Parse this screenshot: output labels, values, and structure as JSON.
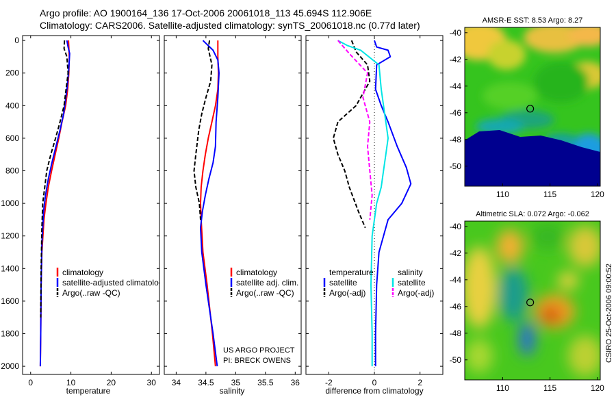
{
  "header": {
    "line1": "Argo profile: AO 1900164_136 17-Oct-2006 20061018_113 45.694S 112.906E",
    "line2": "Climatology: CARS2006. Satellite-adjusted climatology: synTS_20061018.nc (0.77d later)"
  },
  "credit": {
    "project": "US ARGO PROJECT",
    "pi": "PI: BRECK OWENS"
  },
  "stamp": "CSIRO 25-Oct-2006 09:00:52",
  "colors": {
    "climatology": "#ff0000",
    "satellite": "#0000ff",
    "argo": "#000000",
    "satellite_salinity": "#00e5e5",
    "argo_salinity": "#ff00ff"
  },
  "chart_data": [
    {
      "type": "line",
      "panel": "temperature",
      "xlabel": "temperature",
      "ylabel": "",
      "xlim": [
        -2,
        32
      ],
      "ylim": [
        2050,
        -30
      ],
      "x_ticks": [
        "0",
        "10",
        "20",
        "30"
      ],
      "y_ticks": [
        "0",
        "200",
        "400",
        "600",
        "800",
        "1000",
        "1200",
        "1400",
        "1600",
        "1800",
        "2000"
      ],
      "legend": {
        "placement": "lower-right",
        "labels": [
          "climatology",
          "satellite-adjusted climatology",
          "Argo(..raw -QC)"
        ]
      },
      "series": [
        {
          "name": "climatology",
          "color": "#ff0000",
          "dash": "solid",
          "x": [
            9.4,
            9.6,
            9.5,
            9.2,
            8.7,
            7.8,
            7.0,
            6.1,
            5.2,
            4.4,
            3.8,
            3.3,
            2.8,
            2.6,
            2.5,
            2.4
          ],
          "y": [
            0,
            100,
            200,
            300,
            400,
            500,
            600,
            700,
            800,
            900,
            1000,
            1100,
            1300,
            1500,
            1800,
            2000
          ]
        },
        {
          "name": "satellite-adjusted climatology",
          "color": "#0000ff",
          "dash": "solid",
          "x": [
            9.0,
            9.3,
            9.7,
            9.4,
            9.0,
            8.2,
            7.3,
            6.3,
            5.3,
            4.4,
            3.7,
            3.2,
            2.8,
            2.6,
            2.5,
            2.4
          ],
          "y": [
            0,
            40,
            80,
            200,
            300,
            450,
            550,
            650,
            750,
            850,
            950,
            1050,
            1250,
            1500,
            1800,
            2000
          ]
        },
        {
          "name": "Argo(..raw -QC)",
          "color": "#000000",
          "dash": "dashed",
          "x": [
            8.4,
            8.3,
            9.0,
            9.3,
            8.8,
            8.3,
            7.3,
            6.2,
            5.0,
            4.0,
            3.5,
            3.0,
            2.8,
            2.6,
            2.5
          ],
          "y": [
            0,
            50,
            100,
            200,
            300,
            400,
            500,
            600,
            700,
            800,
            900,
            1000,
            1150,
            1400,
            1700
          ]
        }
      ]
    },
    {
      "type": "line",
      "panel": "salinity",
      "xlabel": "salinity",
      "ylabel": "",
      "xlim": [
        33.8,
        36.1
      ],
      "ylim": [
        2050,
        -30
      ],
      "x_ticks": [
        "34",
        "34.5",
        "35",
        "35.5",
        "36"
      ],
      "y_ticks": [],
      "legend": {
        "placement": "lower-right",
        "labels": [
          "climatology",
          "satellite adj. clim.",
          "Argo(..raw -QC)"
        ]
      },
      "series": [
        {
          "name": "climatology",
          "color": "#ff0000",
          "dash": "solid",
          "x": [
            34.7,
            34.7,
            34.71,
            34.7,
            34.66,
            34.6,
            34.54,
            34.49,
            34.45,
            34.42,
            34.41,
            34.42,
            34.45,
            34.52,
            34.61,
            34.66
          ],
          "y": [
            0,
            100,
            200,
            300,
            400,
            500,
            600,
            700,
            800,
            900,
            1000,
            1100,
            1300,
            1500,
            1800,
            2000
          ]
        },
        {
          "name": "satellite adj. clim.",
          "color": "#0000ff",
          "dash": "solid",
          "x": [
            34.45,
            34.62,
            34.7,
            34.72,
            34.7,
            34.67,
            34.66,
            34.62,
            34.55,
            34.49,
            34.44,
            34.41,
            34.43,
            34.5,
            34.62,
            34.69
          ],
          "y": [
            0,
            60,
            120,
            200,
            350,
            500,
            650,
            750,
            850,
            950,
            1050,
            1150,
            1300,
            1500,
            1800,
            2000
          ]
        },
        {
          "name": "Argo(..raw -QC)",
          "color": "#000000",
          "dash": "dashed",
          "x": [
            34.56,
            34.54,
            34.6,
            34.58,
            34.5,
            34.43,
            34.38,
            34.33,
            34.3,
            34.33,
            34.39,
            34.41
          ],
          "y": [
            0,
            50,
            150,
            250,
            350,
            450,
            550,
            700,
            800,
            900,
            1000,
            1100
          ]
        }
      ]
    },
    {
      "type": "line",
      "panel": "difference",
      "xlabel": "difference from climatology",
      "ylabel": "",
      "xlim": [
        -3,
        3
      ],
      "ylim": [
        2050,
        -30
      ],
      "x_ticks": [
        "-2",
        "0",
        "2"
      ],
      "y_ticks": [],
      "legend": {
        "placement": "lower-left",
        "labels": [
          "temperature",
          "satellite",
          "Argo(-adj)",
          "salinity",
          "satellite",
          "Argo(-adj)"
        ]
      },
      "series": [
        {
          "name": "satellite",
          "group": "temperature",
          "color": "#0000ff",
          "dash": "solid",
          "x": [
            0.0,
            0.1,
            0.6,
            0.7,
            0.1,
            0.05,
            0.3,
            0.6,
            1.0,
            1.4,
            1.6,
            1.2,
            0.6,
            0.2,
            0.1,
            0.05,
            0.05
          ],
          "y": [
            0,
            40,
            60,
            100,
            150,
            300,
            400,
            500,
            650,
            780,
            880,
            1000,
            1100,
            1300,
            1500,
            1800,
            2000
          ]
        },
        {
          "name": "Argo(-adj)",
          "group": "temperature",
          "color": "#000000",
          "dash": "dashed",
          "x": [
            -1.0,
            -0.8,
            -0.3,
            -0.2,
            -0.8,
            -1.6,
            -1.8,
            -1.6,
            -1.3,
            -1.1,
            -0.7,
            -0.4
          ],
          "y": [
            0,
            70,
            150,
            250,
            400,
            500,
            600,
            700,
            800,
            900,
            1050,
            1150
          ]
        },
        {
          "name": "satellite",
          "group": "salinity",
          "color": "#00e5e5",
          "dash": "solid",
          "x": [
            -1.6,
            -1.2,
            -0.6,
            0.2,
            0.3,
            0.5,
            0.6,
            0.5,
            0.4,
            0.3,
            0.1,
            -0.1,
            -0.15,
            -0.1,
            -0.1
          ],
          "y": [
            0,
            30,
            60,
            150,
            300,
            500,
            600,
            700,
            800,
            900,
            1000,
            1200,
            1500,
            1800,
            2000
          ]
        },
        {
          "name": "Argo(-adj)",
          "group": "salinity",
          "color": "#ff00ff",
          "dash": "dashed",
          "x": [
            -1.6,
            -1.1,
            -0.3,
            -0.5,
            -0.2,
            -0.3,
            -0.2,
            -0.1,
            -0.2
          ],
          "y": [
            0,
            80,
            200,
            350,
            500,
            650,
            800,
            950,
            1100
          ]
        }
      ]
    },
    {
      "type": "heatmap",
      "panel": "sst_map",
      "title": "AMSR-E SST: 8.53 Argo: 8.27",
      "x_ticks": [
        "110",
        "115",
        "120"
      ],
      "y_ticks": [
        "-40",
        "-42",
        "-44",
        "-46",
        "-48",
        "-50"
      ],
      "xlim": [
        106,
        120.3
      ],
      "ylim": [
        -51.5,
        -39.6
      ],
      "marker": {
        "lon": 112.906,
        "lat": -45.694
      }
    },
    {
      "type": "heatmap",
      "panel": "sla_map",
      "title": "Altimetric SLA: 0.072 Argo: -0.062",
      "x_ticks": [
        "110",
        "115",
        "120"
      ],
      "y_ticks": [
        "-40",
        "-42",
        "-44",
        "-46",
        "-48",
        "-50"
      ],
      "xlim": [
        106,
        120.3
      ],
      "ylim": [
        -51.5,
        -39.6
      ],
      "marker": {
        "lon": 112.906,
        "lat": -45.694
      }
    }
  ]
}
